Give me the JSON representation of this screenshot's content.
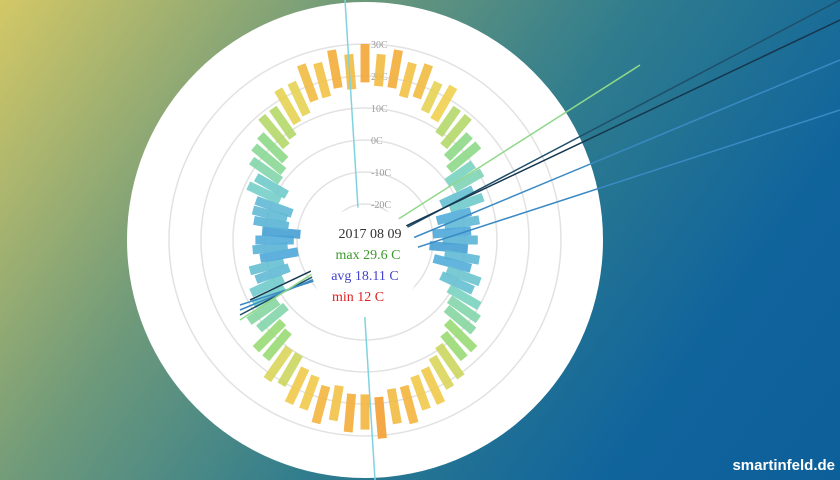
{
  "chart_data": {
    "type": "radial-bar",
    "ylim": [
      -20,
      30
    ],
    "yticks": [
      {
        "value": -20,
        "label": "-20C"
      },
      {
        "value": -10,
        "label": "-10C"
      },
      {
        "value": 0,
        "label": "0C"
      },
      {
        "value": 10,
        "label": "10C"
      },
      {
        "value": 20,
        "label": "20C"
      },
      {
        "value": 30,
        "label": "30C"
      }
    ],
    "highs": [
      30,
      27,
      29,
      26,
      27,
      23,
      24,
      19,
      19,
      15,
      15,
      10,
      11,
      6,
      8,
      3,
      5,
      2,
      4,
      1,
      5,
      3,
      7,
      6,
      10,
      12,
      13,
      17,
      17,
      21,
      22,
      25,
      25,
      28,
      27,
      31,
      28,
      29,
      26,
      28,
      25,
      25,
      21,
      22,
      17,
      17,
      12,
      13,
      9,
      8,
      5,
      6,
      2,
      4,
      3,
      1,
      4,
      5,
      5,
      9,
      8,
      12,
      14,
      15,
      19,
      19,
      23,
      23,
      27,
      26,
      29,
      27
    ],
    "lows": [
      18,
      17,
      17,
      15,
      16,
      13,
      12,
      9,
      7,
      5,
      3,
      0,
      1,
      -5,
      -3,
      -8,
      -6,
      -10,
      -7,
      -11,
      -6,
      -9,
      -4,
      -5,
      -1,
      1,
      2,
      5,
      7,
      9,
      11,
      13,
      14,
      16,
      16,
      18,
      17,
      17,
      15,
      16,
      14,
      13,
      10,
      10,
      6,
      5,
      1,
      2,
      -2,
      -3,
      -6,
      -5,
      -10,
      -7,
      -9,
      -11,
      -7,
      -6,
      -7,
      -2,
      -3,
      1,
      2,
      4,
      7,
      8,
      11,
      12,
      15,
      15,
      17,
      16
    ],
    "selected": {
      "date": "2017 08 09",
      "max": "max 29.6 C",
      "avg": "avg 18.11 C",
      "min": "min 12 C"
    }
  },
  "watermark": "smartinfeld.de"
}
